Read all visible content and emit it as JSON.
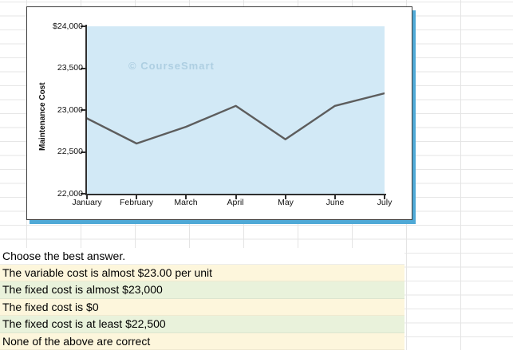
{
  "chart": {
    "y_axis_title": "Maintenance Cost",
    "watermark": "© CourseSmart",
    "line_color": "#5d5d5d",
    "plot_bg": "#d2e9f6",
    "frame_shadow": "#4fa9d6",
    "y_tick_labels": [
      "$24,000",
      "23,500",
      "23,000",
      "22,500",
      "22,000"
    ],
    "x_tick_labels": [
      "January",
      "February",
      "March",
      "April",
      "May",
      "June",
      "July"
    ]
  },
  "chart_data": {
    "type": "line",
    "title": "",
    "xlabel": "",
    "ylabel": "Maintenance Cost",
    "x": [
      "January",
      "February",
      "March",
      "April",
      "May",
      "June",
      "July"
    ],
    "values": [
      22900,
      22600,
      22800,
      23050,
      22650,
      23050,
      23200
    ],
    "ylim": [
      22000,
      24000
    ],
    "yticks": [
      22000,
      22500,
      23000,
      23500,
      24000
    ],
    "grid": false,
    "legend": false,
    "annotations": [
      "© CourseSmart"
    ]
  },
  "quiz": {
    "prompt": "Choose the best answer.",
    "options": [
      {
        "label": "The variable cost is almost $23.00 per unit",
        "bg": "#fdf6dc"
      },
      {
        "label": "The fixed cost is almost $23,000",
        "bg": "#e9f2db"
      },
      {
        "label": "The fixed cost is  $0",
        "bg": "#fdf6dc"
      },
      {
        "label": "The fixed cost is at least $22,500",
        "bg": "#e9f2db"
      },
      {
        "label": "None of the above are correct",
        "bg": "#fdf6dc"
      }
    ]
  }
}
